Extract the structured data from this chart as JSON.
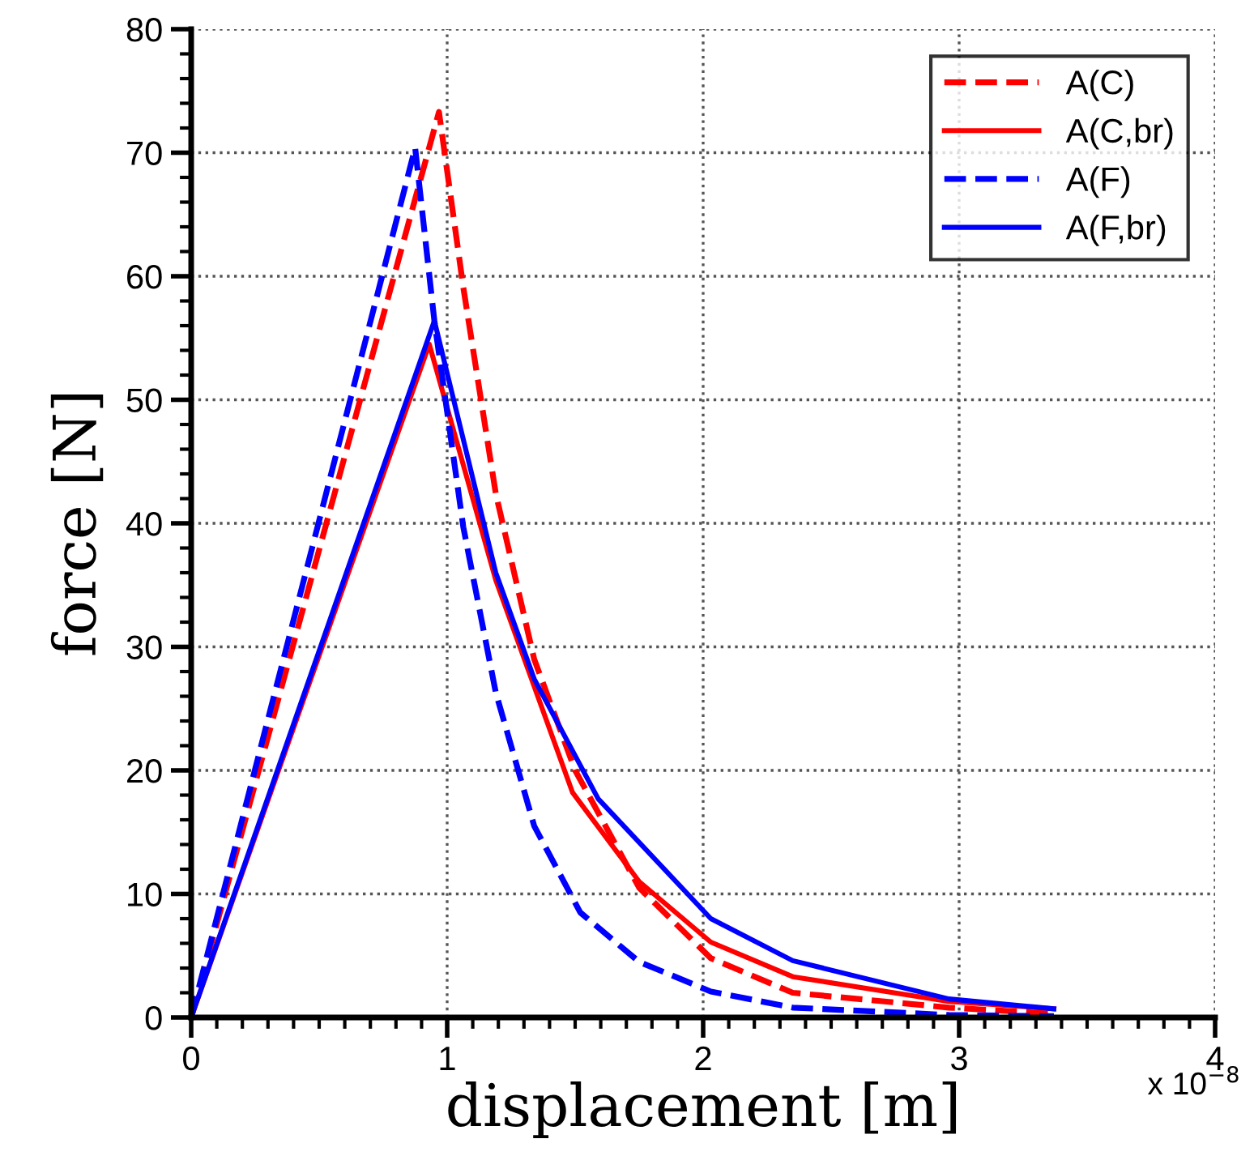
{
  "chart_data": {
    "type": "line",
    "xlabel": "displacement [m]",
    "ylabel": "force [N]",
    "xlim": [
      0,
      4
    ],
    "xticks": [
      0,
      1,
      2,
      3,
      4
    ],
    "ylim": [
      0,
      80
    ],
    "yticks": [
      0,
      10,
      20,
      30,
      40,
      50,
      60,
      70,
      80
    ],
    "grid": true,
    "legend": "top right",
    "annotations": [
      "x 10$^{−8}$"
    ],
    "series": [
      {
        "name": "A(C)",
        "color": "#ff0000",
        "line_style": "dashed",
        "x": [
          0,
          0.968,
          1.063,
          1.19,
          1.34,
          1.5,
          1.75,
          2.03,
          2.35,
          2.96,
          3.37
        ],
        "values": [
          0,
          73.3,
          59.1,
          42.4,
          29,
          20,
          10.5,
          4.8,
          2.0,
          0.8,
          0.3
        ]
      },
      {
        "name": "A(C,br)",
        "color": "#ff0000",
        "line_style": "solid",
        "x": [
          0,
          0.93,
          1.19,
          1.49,
          1.75,
          2.03,
          2.35,
          2.96,
          3.37
        ],
        "values": [
          0,
          54.5,
          35.4,
          18.2,
          11,
          6.1,
          3.3,
          1.3,
          0.7
        ]
      },
      {
        "name": "A(F)",
        "color": "#0000ff",
        "line_style": "dashed",
        "x": [
          0,
          0.875,
          0.95,
          1.063,
          1.19,
          1.34,
          1.52,
          1.75,
          2.03,
          2.35,
          2.96,
          3.37
        ],
        "values": [
          0,
          70.4,
          56.4,
          39.7,
          26.3,
          15.5,
          8.5,
          4.5,
          2.1,
          0.8,
          0.2,
          0.1
        ]
      },
      {
        "name": "A(F,br)",
        "color": "#0000ff",
        "line_style": "solid",
        "x": [
          0,
          0.95,
          1.19,
          1.34,
          1.59,
          2.03,
          2.35,
          2.96,
          3.37
        ],
        "values": [
          0,
          56.4,
          36,
          27.4,
          17.7,
          8.0,
          4.6,
          1.5,
          0.7
        ]
      }
    ]
  }
}
